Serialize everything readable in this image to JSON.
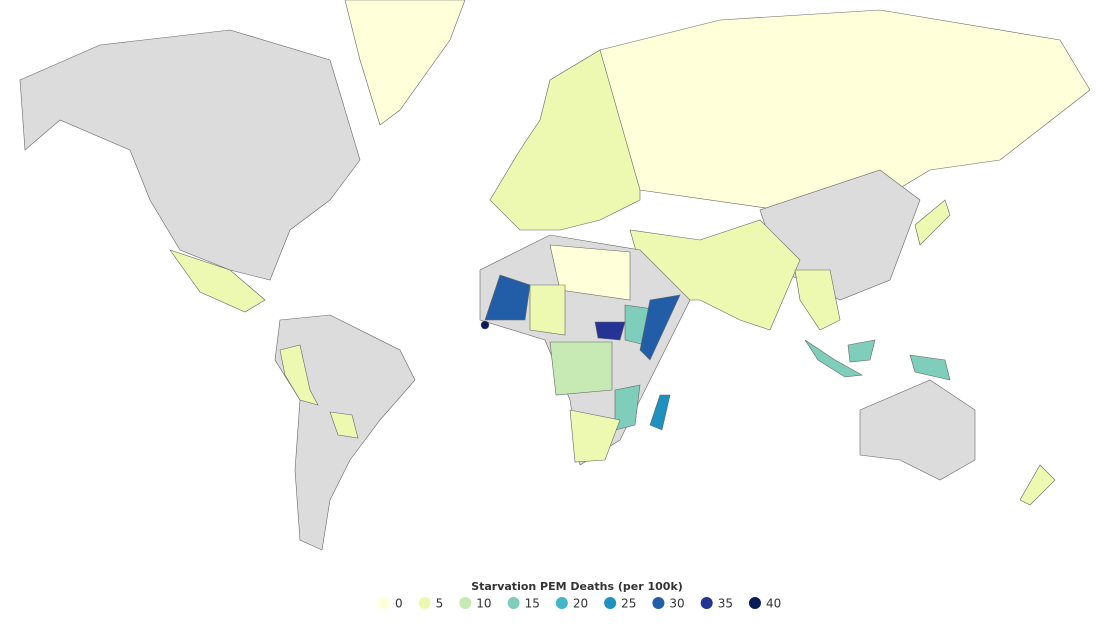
{
  "legend": {
    "title": "Starvation PEM Deaths (per 100k)",
    "items": [
      {
        "value": 0,
        "color": "#ffffd9"
      },
      {
        "value": 5,
        "color": "#edf8b1"
      },
      {
        "value": 10,
        "color": "#c7e9b4"
      },
      {
        "value": 15,
        "color": "#7fcdbb"
      },
      {
        "value": 20,
        "color": "#41b6c4"
      },
      {
        "value": 25,
        "color": "#1d91c0"
      },
      {
        "value": 30,
        "color": "#225ea8"
      },
      {
        "value": 35,
        "color": "#253494"
      },
      {
        "value": 40,
        "color": "#081d58"
      }
    ]
  }
}
